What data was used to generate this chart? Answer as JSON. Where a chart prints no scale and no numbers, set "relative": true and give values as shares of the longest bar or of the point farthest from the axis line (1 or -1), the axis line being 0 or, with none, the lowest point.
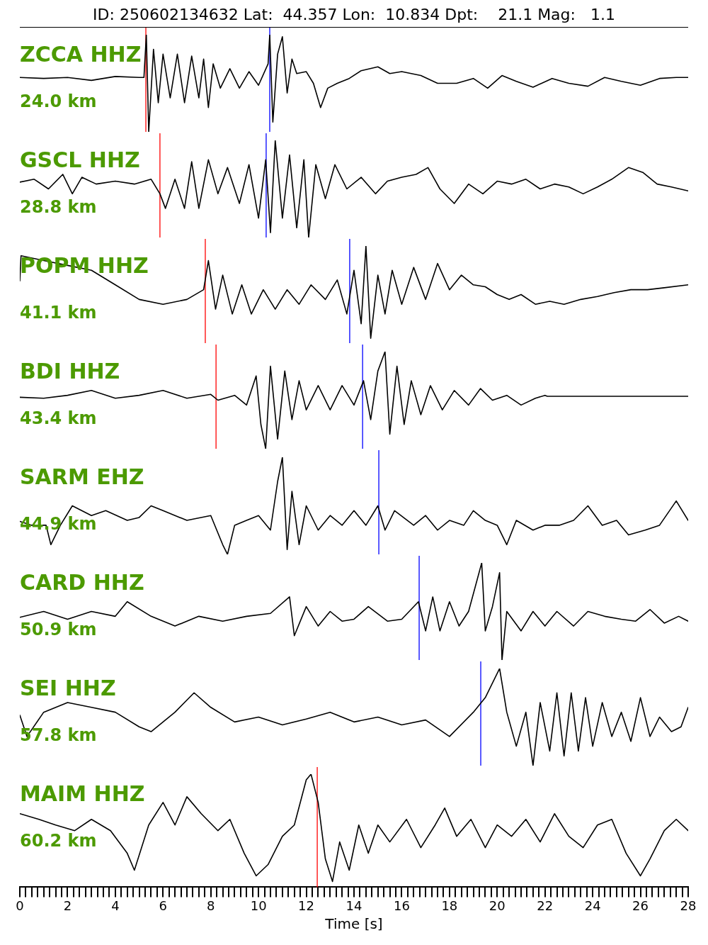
{
  "chart_data": [
    {
      "type": "line",
      "title": "ID: 250602134632 Lat:  44.357 Lon:  10.834 Dpt:    21.1 Mag:   1.1",
      "relative": true,
      "xlim": [
        0,
        28
      ],
      "tick_labels": false,
      "grid": false,
      "legend": false,
      "annotations": [
        "ZCCA HHZ",
        "24.0 km"
      ],
      "ref_lines": [
        {
          "axis": "x",
          "value": 5.28,
          "color": "#ff0000"
        },
        {
          "axis": "x",
          "value": 10.47,
          "color": "#0000ff"
        }
      ],
      "series": [
        {
          "color": "#000000",
          "x": [
            0,
            1,
            2,
            3,
            4,
            5,
            5.2,
            5.3,
            5.4,
            5.6,
            5.8,
            6.0,
            6.3,
            6.6,
            6.9,
            7.2,
            7.5,
            7.7,
            7.9,
            8.1,
            8.4,
            8.8,
            9.2,
            9.6,
            10.0,
            10.4,
            10.47,
            10.6,
            10.8,
            11.0,
            11.2,
            11.4,
            11.6,
            12.0,
            12.3,
            12.6,
            12.9,
            13.3,
            13.8,
            14.3,
            15.0,
            15.5,
            16.0,
            16.8,
            17.5,
            18.3,
            19.0,
            19.6,
            20.2,
            20.8,
            21.5,
            22.3,
            23.0,
            23.8,
            24.5,
            25.2,
            26.0,
            26.8,
            27.5,
            28
          ],
          "values": [
            0.56,
            0.55,
            0.56,
            0.53,
            0.57,
            0.56,
            0.56,
            1.0,
            0.0,
            0.85,
            0.3,
            0.8,
            0.35,
            0.8,
            0.3,
            0.78,
            0.35,
            0.75,
            0.25,
            0.7,
            0.45,
            0.65,
            0.45,
            0.62,
            0.48,
            0.7,
            1.0,
            0.1,
            0.8,
            0.98,
            0.4,
            0.75,
            0.6,
            0.62,
            0.5,
            0.25,
            0.45,
            0.5,
            0.55,
            0.63,
            0.67,
            0.6,
            0.62,
            0.58,
            0.5,
            0.5,
            0.55,
            0.45,
            0.58,
            0.52,
            0.46,
            0.55,
            0.5,
            0.47,
            0.56,
            0.52,
            0.48,
            0.55,
            0.56,
            0.56
          ]
        }
      ]
    },
    {
      "type": "line",
      "relative": true,
      "xlim": [
        0,
        28
      ],
      "tick_labels": false,
      "grid": false,
      "legend": false,
      "annotations": [
        "GSCL HHZ",
        "28.8 km"
      ],
      "ref_lines": [
        {
          "axis": "x",
          "value": 5.87,
          "color": "#ff0000"
        },
        {
          "axis": "x",
          "value": 10.32,
          "color": "#0000ff"
        }
      ],
      "series": [
        {
          "color": "#000000",
          "x": [
            0,
            0.6,
            1.2,
            1.8,
            2.2,
            2.6,
            3.2,
            4.0,
            4.8,
            5.5,
            5.87,
            6.1,
            6.5,
            6.9,
            7.2,
            7.5,
            7.9,
            8.3,
            8.7,
            9.2,
            9.6,
            10.0,
            10.3,
            10.5,
            10.7,
            11.0,
            11.3,
            11.6,
            11.9,
            12.1,
            12.4,
            12.8,
            13.2,
            13.7,
            14.3,
            14.9,
            15.4,
            16.0,
            16.6,
            17.1,
            17.6,
            18.2,
            18.8,
            19.4,
            20.0,
            20.6,
            21.2,
            21.8,
            22.4,
            23.0,
            23.6,
            24.2,
            24.8,
            25.5,
            26.1,
            26.7,
            27.3,
            28
          ],
          "values": [
            0.57,
            0.6,
            0.5,
            0.65,
            0.45,
            0.62,
            0.55,
            0.58,
            0.55,
            0.6,
            0.45,
            0.3,
            0.6,
            0.3,
            0.78,
            0.3,
            0.8,
            0.45,
            0.72,
            0.35,
            0.75,
            0.2,
            0.8,
            0.05,
            1.0,
            0.2,
            0.85,
            0.1,
            0.8,
            0.0,
            0.75,
            0.4,
            0.75,
            0.5,
            0.62,
            0.45,
            0.58,
            0.62,
            0.65,
            0.72,
            0.5,
            0.35,
            0.55,
            0.45,
            0.58,
            0.55,
            0.6,
            0.5,
            0.55,
            0.52,
            0.45,
            0.52,
            0.6,
            0.72,
            0.67,
            0.55,
            0.52,
            0.48
          ]
        }
      ]
    },
    {
      "type": "line",
      "relative": true,
      "xlim": [
        0,
        28
      ],
      "tick_labels": false,
      "grid": false,
      "legend": false,
      "annotations": [
        "POPM HHZ",
        "41.1 km"
      ],
      "ref_lines": [
        {
          "axis": "x",
          "value": 7.77,
          "color": "#ff0000"
        },
        {
          "axis": "x",
          "value": 13.82,
          "color": "#0000ff"
        }
      ],
      "series": [
        {
          "color": "#000000",
          "x": [
            0,
            0.05,
            1,
            2,
            3,
            4,
            5,
            6,
            7,
            7.7,
            7.9,
            8.2,
            8.5,
            8.9,
            9.3,
            9.7,
            10.2,
            10.7,
            11.2,
            11.7,
            12.2,
            12.8,
            13.3,
            13.7,
            14.0,
            14.3,
            14.5,
            14.7,
            15.0,
            15.3,
            15.6,
            16.0,
            16.5,
            17.0,
            17.5,
            18.0,
            18.5,
            19.0,
            19.5,
            20.0,
            20.5,
            21.0,
            21.6,
            22.2,
            22.8,
            23.5,
            24.2,
            24.9,
            25.6,
            26.3,
            27.0,
            28
          ],
          "values": [
            0.64,
            0.9,
            0.85,
            0.8,
            0.75,
            0.6,
            0.45,
            0.4,
            0.45,
            0.55,
            0.85,
            0.35,
            0.7,
            0.3,
            0.6,
            0.3,
            0.55,
            0.35,
            0.55,
            0.4,
            0.6,
            0.45,
            0.65,
            0.3,
            0.75,
            0.2,
            1.0,
            0.05,
            0.7,
            0.3,
            0.75,
            0.4,
            0.78,
            0.45,
            0.82,
            0.55,
            0.7,
            0.6,
            0.58,
            0.5,
            0.45,
            0.5,
            0.4,
            0.43,
            0.4,
            0.45,
            0.48,
            0.52,
            0.55,
            0.55,
            0.57,
            0.6
          ]
        }
      ]
    },
    {
      "type": "line",
      "relative": true,
      "xlim": [
        0,
        28
      ],
      "tick_labels": false,
      "grid": false,
      "legend": false,
      "annotations": [
        "BDI HHZ",
        "43.4 km"
      ],
      "ref_lines": [
        {
          "axis": "x",
          "value": 8.22,
          "color": "#ff0000"
        },
        {
          "axis": "x",
          "value": 14.36,
          "color": "#0000ff"
        }
      ],
      "series": [
        {
          "color": "#000000",
          "x": [
            0,
            1,
            2,
            3,
            4,
            5,
            6,
            7,
            8,
            8.3,
            9,
            9.5,
            9.9,
            10.1,
            10.3,
            10.5,
            10.8,
            11.1,
            11.4,
            11.7,
            12.0,
            12.5,
            13.0,
            13.5,
            14.0,
            14.4,
            14.7,
            15.0,
            15.3,
            15.5,
            15.8,
            16.1,
            16.4,
            16.8,
            17.2,
            17.7,
            18.2,
            18.8,
            19.3,
            19.8,
            20.4,
            21.0,
            21.6,
            22.0,
            22.1,
            28
          ],
          "values": [
            0.53,
            0.52,
            0.55,
            0.6,
            0.52,
            0.55,
            0.6,
            0.52,
            0.56,
            0.5,
            0.55,
            0.45,
            0.75,
            0.25,
            0.0,
            0.85,
            0.1,
            0.8,
            0.3,
            0.7,
            0.4,
            0.65,
            0.4,
            0.65,
            0.45,
            0.7,
            0.3,
            0.8,
            1.0,
            0.15,
            0.85,
            0.25,
            0.7,
            0.35,
            0.65,
            0.4,
            0.6,
            0.45,
            0.62,
            0.5,
            0.55,
            0.45,
            0.52,
            0.55,
            0.54,
            0.54
          ]
        }
      ]
    },
    {
      "type": "line",
      "relative": true,
      "xlim": [
        0,
        28
      ],
      "tick_labels": false,
      "grid": false,
      "legend": false,
      "annotations": [
        "SARM EHZ",
        "44.9 km"
      ],
      "ref_lines": [
        {
          "axis": "x",
          "value": 15.04,
          "color": "#0000ff"
        }
      ],
      "series": [
        {
          "color": "#000000",
          "x": [
            0,
            0.5,
            1.1,
            1.3,
            1.7,
            2.2,
            3,
            3.6,
            4.5,
            5,
            5.5,
            6,
            7,
            8,
            8.5,
            8.7,
            9,
            9.5,
            10,
            10.5,
            10.8,
            11.0,
            11.2,
            11.4,
            11.7,
            12.0,
            12.5,
            13.0,
            13.5,
            14.0,
            14.5,
            15.0,
            15.3,
            15.7,
            16.5,
            17.0,
            17.5,
            18.0,
            18.6,
            19.0,
            19.5,
            20.0,
            20.4,
            20.8,
            21.5,
            22,
            22.6,
            23.2,
            23.8,
            24.4,
            25.0,
            25.5,
            26.2,
            26.8,
            27.5,
            28
          ],
          "values": [
            0.34,
            0.3,
            0.3,
            0.1,
            0.3,
            0.5,
            0.4,
            0.45,
            0.35,
            0.38,
            0.5,
            0.45,
            0.35,
            0.4,
            0.1,
            0.0,
            0.3,
            0.35,
            0.4,
            0.25,
            0.75,
            1.0,
            0.05,
            0.65,
            0.1,
            0.5,
            0.25,
            0.4,
            0.3,
            0.45,
            0.3,
            0.5,
            0.25,
            0.45,
            0.3,
            0.4,
            0.25,
            0.35,
            0.3,
            0.45,
            0.35,
            0.3,
            0.1,
            0.35,
            0.25,
            0.3,
            0.3,
            0.35,
            0.5,
            0.3,
            0.35,
            0.2,
            0.25,
            0.3,
            0.55,
            0.35
          ]
        }
      ]
    },
    {
      "type": "line",
      "relative": true,
      "xlim": [
        0,
        28
      ],
      "tick_labels": false,
      "grid": false,
      "legend": false,
      "annotations": [
        "CARD HHZ",
        "50.9 km"
      ],
      "ref_lines": [
        {
          "axis": "x",
          "value": 16.73,
          "color": "#0000ff"
        }
      ],
      "series": [
        {
          "color": "#000000",
          "x": [
            0,
            1,
            2,
            3,
            4,
            4.5,
            5.5,
            6.5,
            7.5,
            8.5,
            9.5,
            10.5,
            11.3,
            11.5,
            12.0,
            12.5,
            13.0,
            13.5,
            14.0,
            14.6,
            15.4,
            16.0,
            16.7,
            17.0,
            17.3,
            17.6,
            18.0,
            18.4,
            18.8,
            19.35,
            19.5,
            19.8,
            20.1,
            20.2,
            20.4,
            21.0,
            21.5,
            22.0,
            22.5,
            23.2,
            23.8,
            24.5,
            25.2,
            25.8,
            26.4,
            27.0,
            27.6,
            28
          ],
          "values": [
            0.44,
            0.5,
            0.42,
            0.5,
            0.45,
            0.6,
            0.45,
            0.35,
            0.45,
            0.4,
            0.45,
            0.48,
            0.65,
            0.25,
            0.55,
            0.35,
            0.5,
            0.4,
            0.42,
            0.55,
            0.4,
            0.42,
            0.6,
            0.3,
            0.65,
            0.3,
            0.6,
            0.35,
            0.5,
            1.0,
            0.3,
            0.55,
            0.9,
            0.0,
            0.5,
            0.3,
            0.5,
            0.35,
            0.5,
            0.35,
            0.5,
            0.45,
            0.42,
            0.4,
            0.52,
            0.38,
            0.45,
            0.4
          ]
        }
      ]
    },
    {
      "type": "line",
      "relative": true,
      "xlim": [
        0,
        28
      ],
      "tick_labels": false,
      "grid": false,
      "legend": false,
      "annotations": [
        "SEI HHZ",
        "57.8 km"
      ],
      "ref_lines": [
        {
          "axis": "x",
          "value": 19.31,
          "color": "#0000ff"
        }
      ],
      "series": [
        {
          "color": "#000000",
          "x": [
            0,
            0.3,
            1,
            2,
            3,
            4,
            5,
            5.5,
            6.5,
            7.3,
            8,
            9,
            10,
            11,
            12,
            13,
            14,
            15,
            16,
            17,
            18,
            19,
            19.5,
            20.1,
            20.4,
            20.8,
            21.2,
            21.5,
            21.8,
            22.2,
            22.5,
            22.8,
            23.1,
            23.4,
            23.7,
            24.0,
            24.4,
            24.8,
            25.2,
            25.6,
            26.0,
            26.4,
            26.8,
            27.3,
            27.7,
            28
          ],
          "values": [
            0.52,
            0.3,
            0.55,
            0.65,
            0.6,
            0.55,
            0.4,
            0.35,
            0.55,
            0.75,
            0.6,
            0.45,
            0.5,
            0.42,
            0.48,
            0.55,
            0.45,
            0.5,
            0.42,
            0.47,
            0.3,
            0.55,
            0.7,
            1.0,
            0.55,
            0.2,
            0.55,
            0.0,
            0.65,
            0.15,
            0.75,
            0.1,
            0.75,
            0.15,
            0.7,
            0.2,
            0.65,
            0.3,
            0.55,
            0.25,
            0.7,
            0.3,
            0.5,
            0.35,
            0.4,
            0.6
          ]
        }
      ]
    },
    {
      "type": "line",
      "relative": true,
      "xlim": [
        0,
        28
      ],
      "tick_labels": "x",
      "grid": false,
      "legend": false,
      "xlabel": "Time [s]",
      "annotations": [
        "MAIM HHZ",
        "60.2 km"
      ],
      "ref_lines": [
        {
          "axis": "x",
          "value": 12.46,
          "color": "#ff0000"
        }
      ],
      "xticks": [
        0,
        {
          "value": 0.25,
          "label": null
        },
        {
          "value": 0.5,
          "label": null
        },
        {
          "value": 0.75,
          "label": null
        },
        {
          "value": 1,
          "label": null
        },
        {
          "value": 1.25,
          "label": null
        },
        {
          "value": 1.5,
          "label": null
        },
        {
          "value": 1.75,
          "label": null
        },
        2,
        {
          "value": 2.25,
          "label": null
        },
        {
          "value": 2.5,
          "label": null
        },
        {
          "value": 2.75,
          "label": null
        },
        {
          "value": 3,
          "label": null
        },
        {
          "value": 3.25,
          "label": null
        },
        {
          "value": 3.5,
          "label": null
        },
        {
          "value": 3.75,
          "label": null
        },
        4,
        {
          "value": 4.25,
          "label": null
        },
        {
          "value": 4.5,
          "label": null
        },
        {
          "value": 4.75,
          "label": null
        },
        {
          "value": 5,
          "label": null
        },
        {
          "value": 5.25,
          "label": null
        },
        {
          "value": 5.5,
          "label": null
        },
        {
          "value": 5.75,
          "label": null
        },
        6,
        {
          "value": 6.25,
          "label": null
        },
        {
          "value": 6.5,
          "label": null
        },
        {
          "value": 6.75,
          "label": null
        },
        {
          "value": 7,
          "label": null
        },
        {
          "value": 7.25,
          "label": null
        },
        {
          "value": 7.5,
          "label": null
        },
        {
          "value": 7.75,
          "label": null
        },
        8,
        {
          "value": 8.25,
          "label": null
        },
        {
          "value": 8.5,
          "label": null
        },
        {
          "value": 8.75,
          "label": null
        },
        {
          "value": 9,
          "label": null
        },
        {
          "value": 9.25,
          "label": null
        },
        {
          "value": 9.5,
          "label": null
        },
        {
          "value": 9.75,
          "label": null
        },
        10,
        {
          "value": 10.25,
          "label": null
        },
        {
          "value": 10.5,
          "label": null
        },
        {
          "value": 10.75,
          "label": null
        },
        {
          "value": 11,
          "label": null
        },
        {
          "value": 11.25,
          "label": null
        },
        {
          "value": 11.5,
          "label": null
        },
        {
          "value": 11.75,
          "label": null
        },
        12,
        {
          "value": 12.25,
          "label": null
        },
        {
          "value": 12.5,
          "label": null
        },
        {
          "value": 12.75,
          "label": null
        },
        {
          "value": 13,
          "label": null
        },
        {
          "value": 13.25,
          "label": null
        },
        {
          "value": 13.5,
          "label": null
        },
        {
          "value": 13.75,
          "label": null
        },
        14,
        {
          "value": 14.25,
          "label": null
        },
        {
          "value": 14.5,
          "label": null
        },
        {
          "value": 14.75,
          "label": null
        },
        {
          "value": 15,
          "label": null
        },
        {
          "value": 15.25,
          "label": null
        },
        {
          "value": 15.5,
          "label": null
        },
        {
          "value": 15.75,
          "label": null
        },
        16,
        {
          "value": 16.25,
          "label": null
        },
        {
          "value": 16.5,
          "label": null
        },
        {
          "value": 16.75,
          "label": null
        },
        {
          "value": 17,
          "label": null
        },
        {
          "value": 17.25,
          "label": null
        },
        {
          "value": 17.5,
          "label": null
        },
        {
          "value": 17.75,
          "label": null
        },
        18,
        {
          "value": 18.25,
          "label": null
        },
        {
          "value": 18.5,
          "label": null
        },
        {
          "value": 18.75,
          "label": null
        },
        {
          "value": 19,
          "label": null
        },
        {
          "value": 19.25,
          "label": null
        },
        {
          "value": 19.5,
          "label": null
        },
        {
          "value": 19.75,
          "label": null
        },
        20,
        {
          "value": 20.25,
          "label": null
        },
        {
          "value": 20.5,
          "label": null
        },
        {
          "value": 20.75,
          "label": null
        },
        {
          "value": 21,
          "label": null
        },
        {
          "value": 21.25,
          "label": null
        },
        {
          "value": 21.5,
          "label": null
        },
        {
          "value": 21.75,
          "label": null
        },
        22,
        {
          "value": 22.25,
          "label": null
        },
        {
          "value": 22.5,
          "label": null
        },
        {
          "value": 22.75,
          "label": null
        },
        {
          "value": 23,
          "label": null
        },
        {
          "value": 23.25,
          "label": null
        },
        {
          "value": 23.5,
          "label": null
        },
        {
          "value": 23.75,
          "label": null
        },
        24,
        {
          "value": 24.25,
          "label": null
        },
        {
          "value": 24.5,
          "label": null
        },
        {
          "value": 24.75,
          "label": null
        },
        {
          "value": 25,
          "label": null
        },
        {
          "value": 25.25,
          "label": null
        },
        {
          "value": 25.5,
          "label": null
        },
        {
          "value": 25.75,
          "label": null
        },
        26,
        {
          "value": 26.25,
          "label": null
        },
        {
          "value": 26.5,
          "label": null
        },
        {
          "value": 26.75,
          "label": null
        },
        {
          "value": 27,
          "label": null
        },
        {
          "value": 27.25,
          "label": null
        },
        {
          "value": 27.5,
          "label": null
        },
        {
          "value": 27.75,
          "label": null
        },
        28
      ],
      "series": [
        {
          "color": "#000000",
          "x": [
            0,
            0.8,
            1.5,
            2.3,
            3.0,
            3.8,
            4.5,
            4.8,
            5.4,
            6.0,
            6.5,
            7.0,
            7.6,
            8.3,
            8.8,
            9.4,
            9.9,
            10.4,
            11.0,
            11.5,
            12.0,
            12.2,
            12.5,
            12.8,
            13.1,
            13.4,
            13.8,
            14.2,
            14.6,
            15.0,
            15.5,
            16.2,
            16.8,
            17.4,
            17.8,
            18.3,
            18.9,
            19.5,
            20.0,
            20.6,
            21.2,
            21.8,
            22.4,
            23.0,
            23.6,
            24.2,
            24.8,
            25.4,
            26.0,
            26.4,
            27.0,
            27.5,
            28
          ],
          "values": [
            0.65,
            0.6,
            0.55,
            0.5,
            0.6,
            0.5,
            0.3,
            0.15,
            0.55,
            0.75,
            0.55,
            0.8,
            0.65,
            0.5,
            0.6,
            0.3,
            0.1,
            0.2,
            0.45,
            0.55,
            0.95,
            1.0,
            0.75,
            0.25,
            0.05,
            0.4,
            0.15,
            0.55,
            0.3,
            0.55,
            0.4,
            0.6,
            0.35,
            0.55,
            0.7,
            0.45,
            0.6,
            0.35,
            0.55,
            0.45,
            0.6,
            0.4,
            0.65,
            0.45,
            0.35,
            0.55,
            0.6,
            0.3,
            0.1,
            0.25,
            0.5,
            0.6,
            0.5
          ]
        }
      ]
    }
  ]
}
